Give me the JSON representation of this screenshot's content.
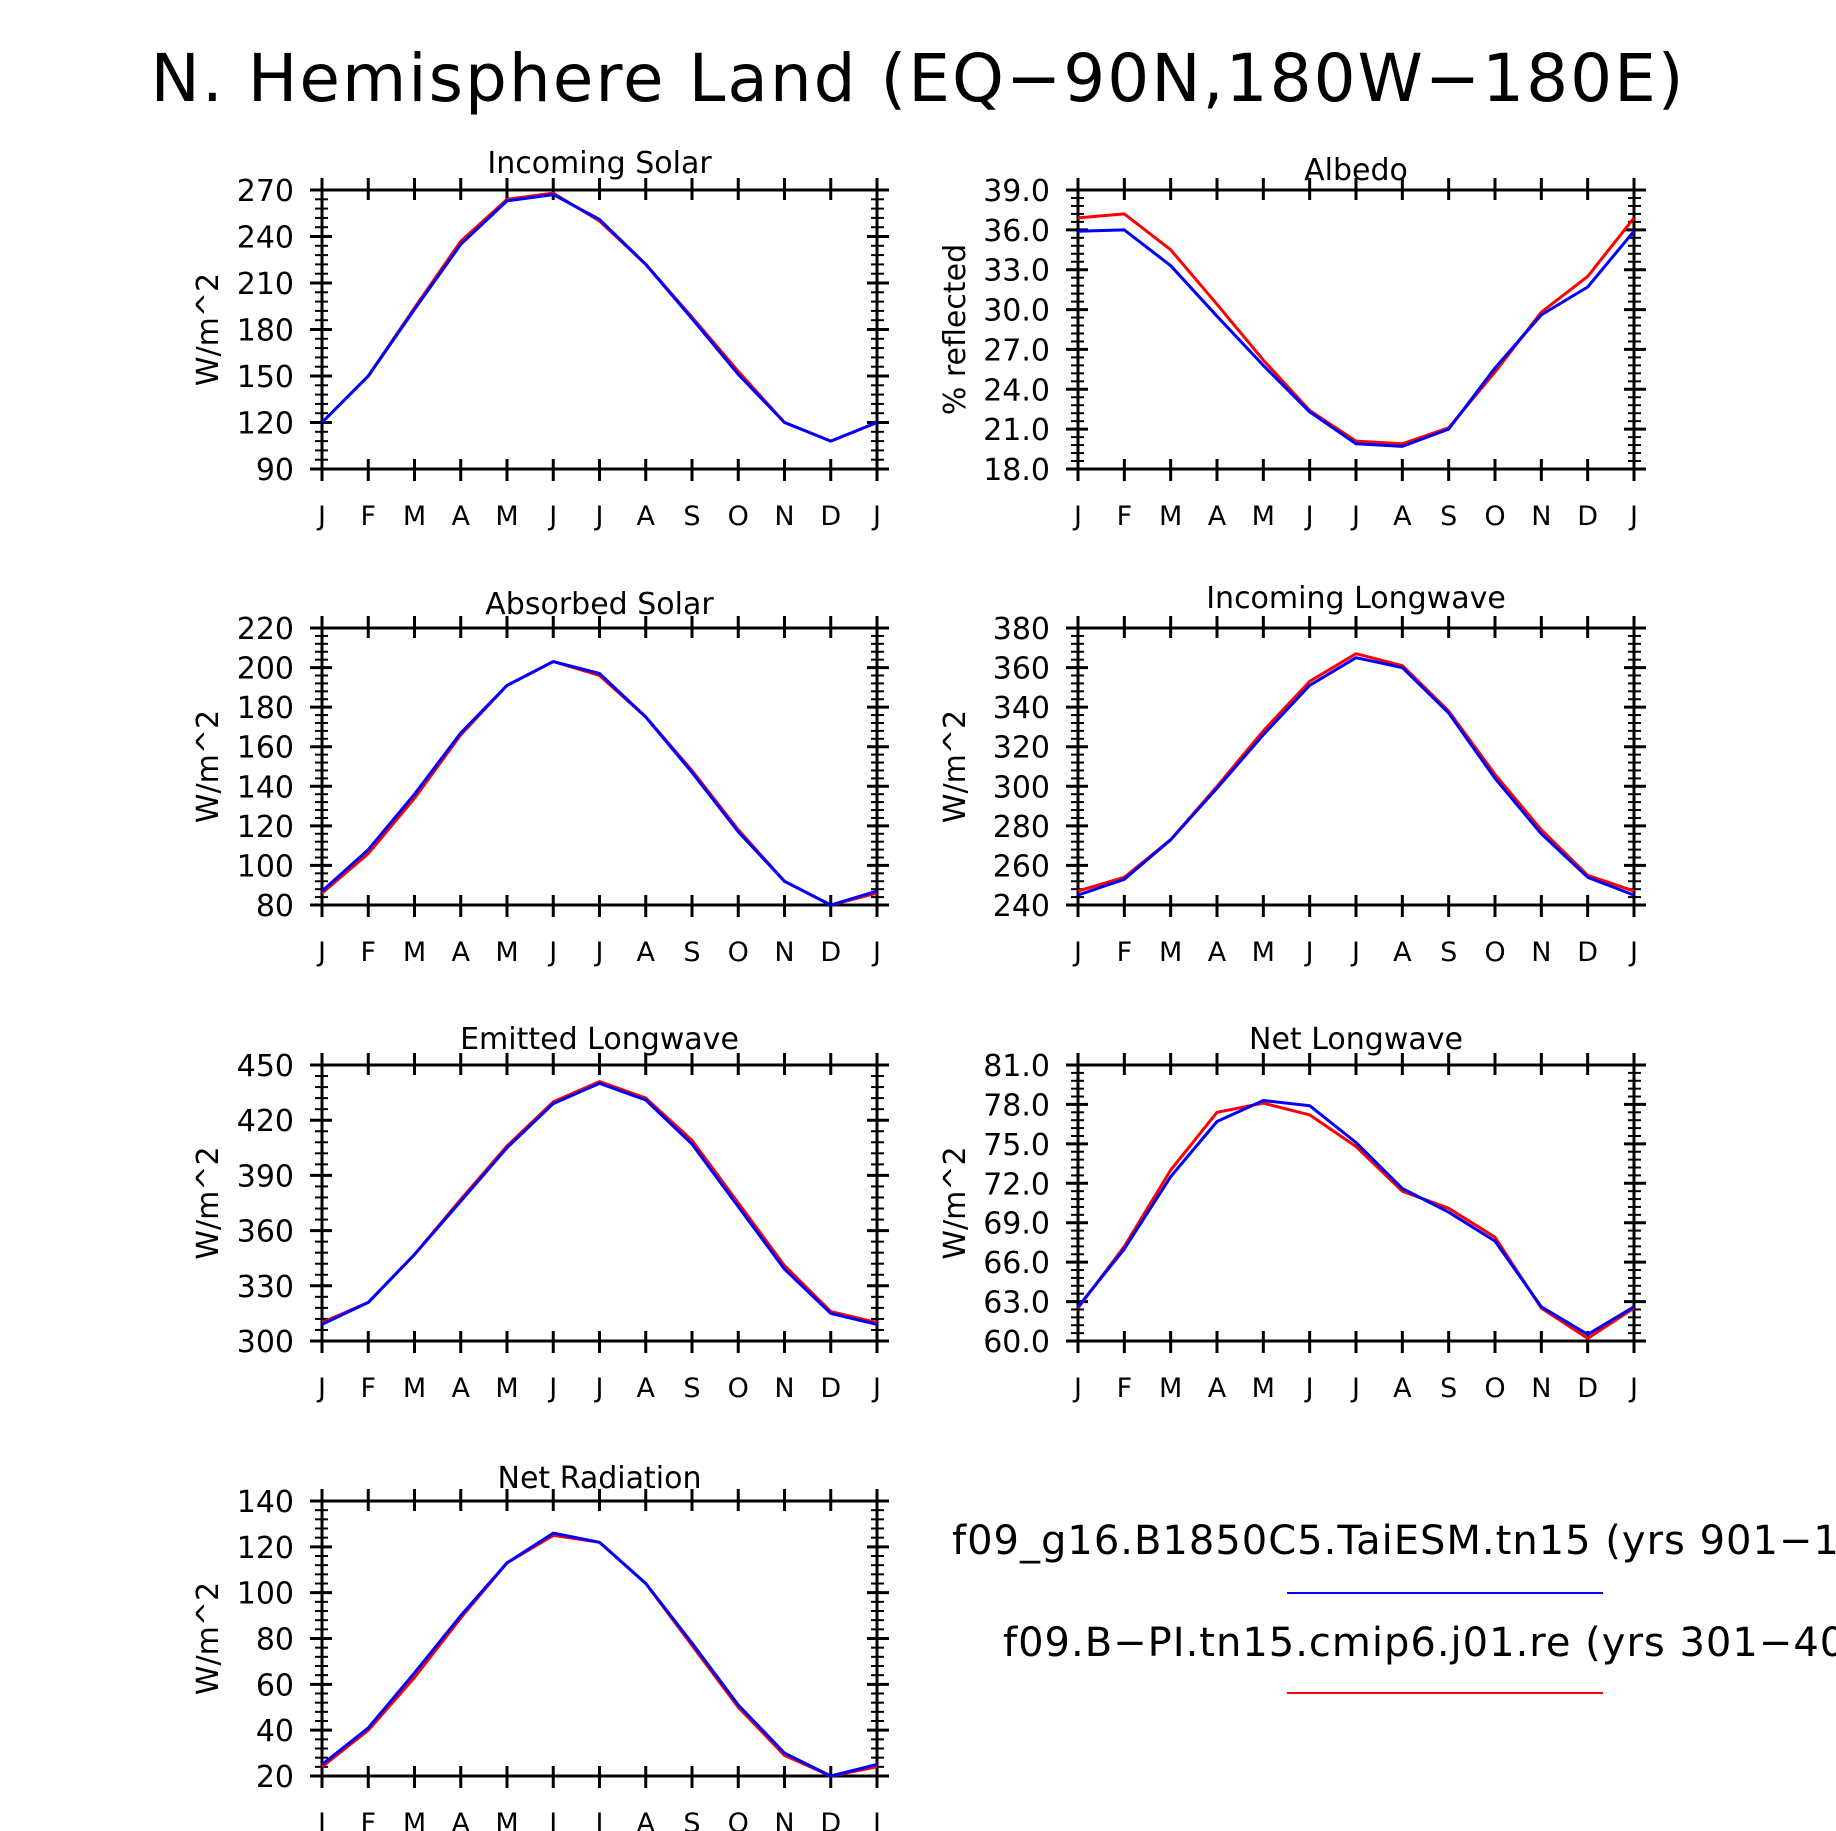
{
  "figure_title": "N. Hemisphere Land (EQ−90N,180W−180E)",
  "legend": {
    "entries": [
      {
        "label": "f09_g16.B1850C5.TaiESM.tn15 (yrs 901−1",
        "color": "#0000ff"
      },
      {
        "label": "f09.B−PI.tn15.cmip6.j01.re (yrs 301−40",
        "color": "#ff0000"
      }
    ]
  },
  "colors": {
    "series_blue": "#0000ff",
    "series_red": "#ff0000",
    "axes": "#000000"
  },
  "chart_data": [
    {
      "type": "line",
      "title": "Incoming Solar",
      "ylabel": "W/m^2",
      "xlabel": "",
      "categories": [
        "J",
        "F",
        "M",
        "A",
        "M",
        "J",
        "J",
        "A",
        "S",
        "O",
        "N",
        "D",
        "J"
      ],
      "ylim": [
        90,
        270
      ],
      "yticks": [
        "90",
        "120",
        "150",
        "180",
        "210",
        "240",
        "270"
      ],
      "series": [
        {
          "color": "#ff0000",
          "values": [
            120,
            150,
            194,
            237,
            264,
            268,
            250,
            222,
            188,
            153,
            120,
            108,
            120
          ]
        },
        {
          "color": "#0000ff",
          "values": [
            120,
            150,
            193,
            235,
            263,
            267,
            251,
            222,
            187,
            151,
            120,
            108,
            120
          ]
        }
      ]
    },
    {
      "type": "line",
      "title": "Albedo",
      "ylabel": "% reflected",
      "xlabel": "",
      "categories": [
        "J",
        "F",
        "M",
        "A",
        "M",
        "J",
        "J",
        "A",
        "S",
        "O",
        "N",
        "D",
        "J"
      ],
      "ylim": [
        18.0,
        39.0
      ],
      "yticks": [
        "18.0",
        "21.0",
        "24.0",
        "27.0",
        "30.0",
        "33.0",
        "36.0",
        "39.0"
      ],
      "series": [
        {
          "color": "#ff0000",
          "values": [
            36.9,
            37.2,
            34.5,
            30.4,
            26.2,
            22.4,
            20.1,
            19.9,
            21.1,
            25.3,
            29.8,
            32.5,
            36.9
          ]
        },
        {
          "color": "#0000ff",
          "values": [
            35.9,
            36.0,
            33.3,
            29.5,
            25.8,
            22.3,
            19.9,
            19.7,
            21.0,
            25.6,
            29.6,
            31.7,
            35.9
          ]
        }
      ]
    },
    {
      "type": "line",
      "title": "Absorbed Solar",
      "ylabel": "W/m^2",
      "xlabel": "",
      "categories": [
        "J",
        "F",
        "M",
        "A",
        "M",
        "J",
        "J",
        "A",
        "S",
        "O",
        "N",
        "D",
        "J"
      ],
      "ylim": [
        80,
        220
      ],
      "yticks": [
        "80",
        "100",
        "120",
        "140",
        "160",
        "180",
        "200",
        "220"
      ],
      "series": [
        {
          "color": "#ff0000",
          "values": [
            86,
            106,
            134,
            166,
            191,
            203,
            196,
            175,
            148,
            118,
            92,
            80,
            86
          ]
        },
        {
          "color": "#0000ff",
          "values": [
            87,
            108,
            136,
            167,
            191,
            203,
            197,
            175,
            147,
            117,
            92,
            80,
            87
          ]
        }
      ]
    },
    {
      "type": "line",
      "title": "Incoming Longwave",
      "ylabel": "W/m^2",
      "xlabel": "",
      "categories": [
        "J",
        "F",
        "M",
        "A",
        "M",
        "J",
        "J",
        "A",
        "S",
        "O",
        "N",
        "D",
        "J"
      ],
      "ylim": [
        240,
        380
      ],
      "yticks": [
        "240",
        "260",
        "280",
        "300",
        "320",
        "340",
        "360",
        "380"
      ],
      "series": [
        {
          "color": "#ff0000",
          "values": [
            247,
            254,
            273,
            300,
            328,
            353,
            367,
            361,
            338,
            306,
            278,
            255,
            247
          ]
        },
        {
          "color": "#0000ff",
          "values": [
            245,
            253,
            273,
            299,
            326,
            351,
            365,
            360,
            337,
            304,
            276,
            254,
            245
          ]
        }
      ]
    },
    {
      "type": "line",
      "title": "Emitted Longwave",
      "ylabel": "W/m^2",
      "xlabel": "",
      "categories": [
        "J",
        "F",
        "M",
        "A",
        "M",
        "J",
        "J",
        "A",
        "S",
        "O",
        "N",
        "D",
        "J"
      ],
      "ylim": [
        300,
        450
      ],
      "yticks": [
        "300",
        "330",
        "360",
        "390",
        "420",
        "450"
      ],
      "series": [
        {
          "color": "#ff0000",
          "values": [
            310,
            321,
            347,
            377,
            406,
            430,
            441,
            432,
            409,
            375,
            341,
            316,
            310
          ]
        },
        {
          "color": "#0000ff",
          "values": [
            309,
            321,
            347,
            376,
            405,
            429,
            440,
            431,
            407,
            373,
            339,
            315,
            309
          ]
        }
      ]
    },
    {
      "type": "line",
      "title": "Net Longwave",
      "ylabel": "W/m^2",
      "xlabel": "",
      "categories": [
        "J",
        "F",
        "M",
        "A",
        "M",
        "J",
        "J",
        "A",
        "S",
        "O",
        "N",
        "D",
        "J"
      ],
      "ylim": [
        60.0,
        81.0
      ],
      "yticks": [
        "60.0",
        "63.0",
        "66.0",
        "69.0",
        "72.0",
        "75.0",
        "78.0",
        "81.0"
      ],
      "series": [
        {
          "color": "#ff0000",
          "values": [
            62.5,
            67.2,
            73.0,
            77.4,
            78.1,
            77.2,
            74.8,
            71.4,
            70.1,
            67.9,
            62.5,
            60.2,
            62.5
          ]
        },
        {
          "color": "#0000ff",
          "values": [
            62.6,
            67.0,
            72.5,
            76.7,
            78.3,
            77.9,
            75.1,
            71.6,
            69.8,
            67.6,
            62.6,
            60.5,
            62.6
          ]
        }
      ]
    },
    {
      "type": "line",
      "title": "Net Radiation",
      "ylabel": "W/m^2",
      "xlabel": "",
      "categories": [
        "J",
        "F",
        "M",
        "A",
        "M",
        "J",
        "J",
        "A",
        "S",
        "O",
        "N",
        "D",
        "J"
      ],
      "ylim": [
        20,
        140
      ],
      "yticks": [
        "20",
        "40",
        "60",
        "80",
        "100",
        "120",
        "140"
      ],
      "series": [
        {
          "color": "#ff0000",
          "values": [
            24,
            40,
            63,
            89,
            113,
            125,
            122,
            104,
            77,
            50,
            29,
            20,
            24
          ]
        },
        {
          "color": "#0000ff",
          "values": [
            25,
            41,
            65,
            90,
            113,
            126,
            122,
            104,
            78,
            51,
            30,
            20,
            25
          ]
        }
      ]
    }
  ]
}
